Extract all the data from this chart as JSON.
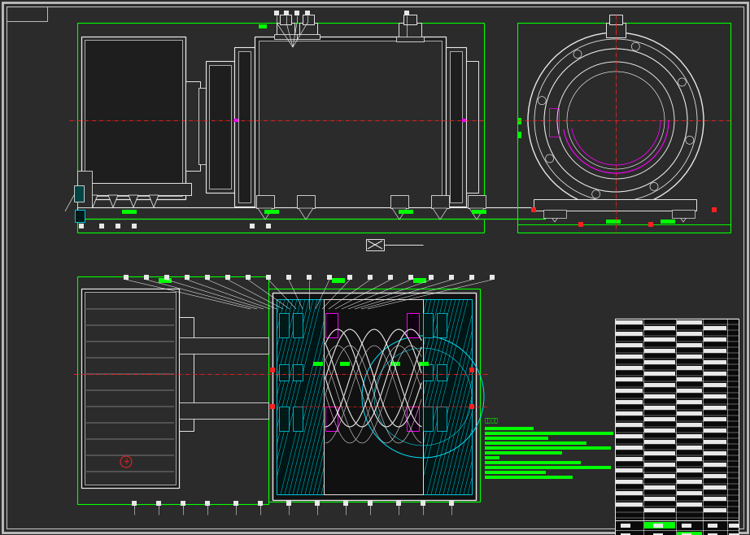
{
  "bg_color": "#2b2b2b",
  "border_color": "#c0c0c0",
  "white": "#e8e8e8",
  "green": "#00ff00",
  "cyan": "#00e5ff",
  "magenta": "#ff00ff",
  "red": "#ff2020",
  "figsize": [
    9.22,
    6.58
  ],
  "dpi": 100
}
